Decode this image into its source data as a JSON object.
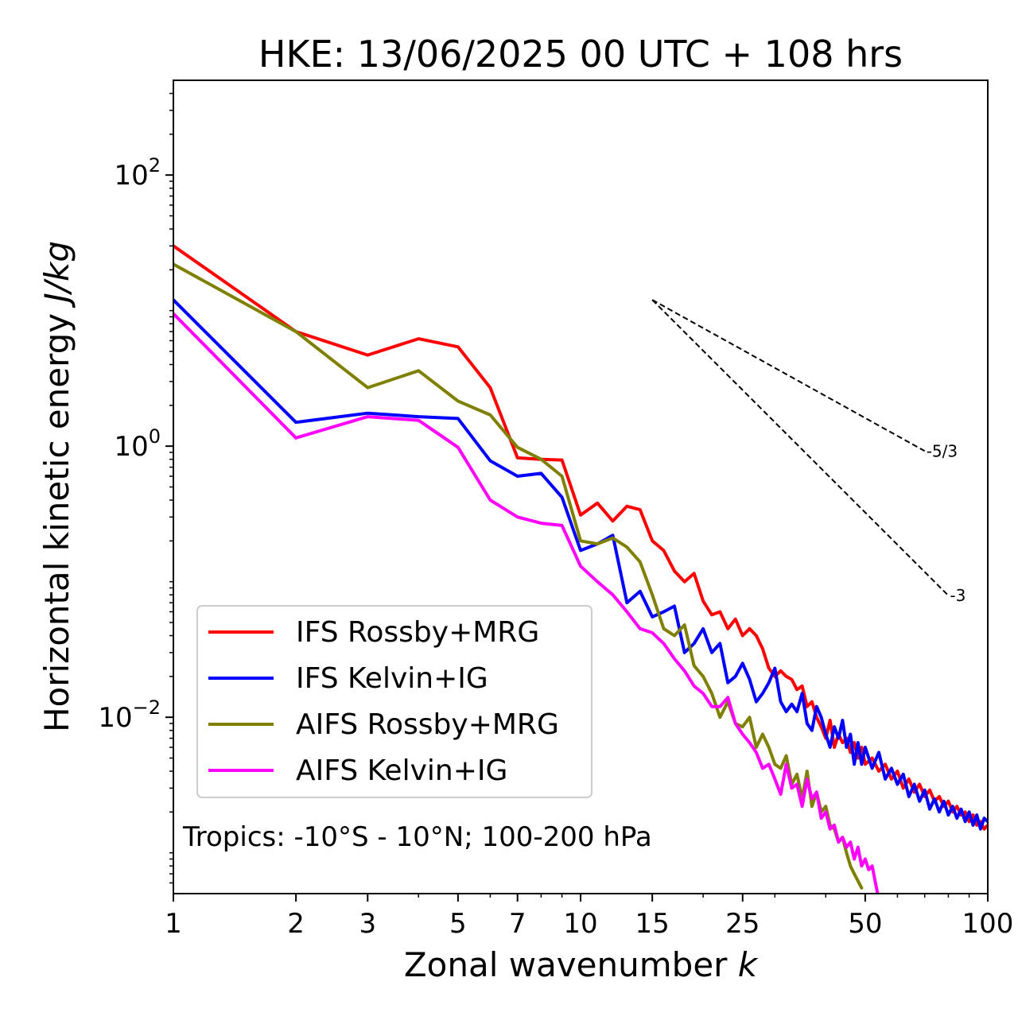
{
  "chart_data": {
    "type": "line",
    "title": "HKE: 13/06/2025 00 UTC + 108 hrs",
    "xlabel": "Zonal wavenumber k",
    "xlabel_parts": {
      "text": "Zonal wavenumber ",
      "var": "k"
    },
    "ylabel": "Horizontal kinetic energy J/kg",
    "ylabel_parts": {
      "text": "Horizontal kinetic energy ",
      "var": "J/kg"
    },
    "xscale": "log",
    "yscale": "log",
    "xlim": [
      1,
      100
    ],
    "ylim": [
      0.0005,
      500
    ],
    "xticks": [
      1,
      2,
      3,
      5,
      7,
      10,
      15,
      25,
      50,
      100
    ],
    "xtick_labels": [
      "1",
      "2",
      "3",
      "5",
      "7",
      "10",
      "15",
      "25",
      "50",
      "100"
    ],
    "yticks": [
      {
        "value": 100,
        "base": "10",
        "exp": "2"
      },
      {
        "value": 1,
        "base": "10",
        "exp": "0"
      },
      {
        "value": 0.01,
        "base": "10",
        "exp": "−2"
      }
    ],
    "grid": false,
    "legend": {
      "placement": "lower-left"
    },
    "annotation": "Tropics: -10°S - 10°N; 100-200 hPa",
    "reference_slopes": [
      {
        "label": "-5/3",
        "slope": -1.6667,
        "x_start": 15,
        "x_end": 70,
        "y_start": 12
      },
      {
        "label": "-3",
        "slope": -3,
        "x_start": 15,
        "x_end": 80,
        "y_start": 12
      }
    ],
    "series": [
      {
        "name": "IFS Rossby+MRG",
        "color": "#ff0000",
        "x": [
          1,
          2,
          3,
          4,
          5,
          6,
          7,
          8,
          9,
          10,
          11,
          12,
          13,
          14,
          15,
          16,
          17,
          18,
          19,
          20,
          21,
          22,
          23,
          24,
          25,
          26,
          27,
          28,
          29,
          30,
          31,
          32,
          33,
          34,
          35,
          36,
          37,
          38,
          39,
          40,
          41,
          42,
          43,
          44,
          45,
          46,
          47,
          48,
          49,
          50,
          52,
          54,
          56,
          58,
          60,
          62,
          64,
          66,
          68,
          70,
          72,
          74,
          76,
          78,
          80,
          82,
          84,
          86,
          88,
          90,
          92,
          94,
          96,
          98,
          100
        ],
        "y": [
          30,
          7,
          4.7,
          6.2,
          5.4,
          2.7,
          0.82,
          0.8,
          0.79,
          0.31,
          0.38,
          0.28,
          0.36,
          0.34,
          0.2,
          0.17,
          0.12,
          0.1,
          0.115,
          0.072,
          0.057,
          0.06,
          0.045,
          0.053,
          0.04,
          0.045,
          0.04,
          0.032,
          0.023,
          0.02,
          0.022,
          0.02,
          0.019,
          0.016,
          0.017,
          0.012,
          0.013,
          0.01,
          0.0085,
          0.007,
          0.0095,
          0.006,
          0.0075,
          0.0065,
          0.007,
          0.0055,
          0.0065,
          0.005,
          0.006,
          0.0045,
          0.005,
          0.004,
          0.0045,
          0.0035,
          0.004,
          0.003,
          0.0035,
          0.0028,
          0.0032,
          0.0026,
          0.0029,
          0.0024,
          0.0026,
          0.0022,
          0.0024,
          0.002,
          0.0022,
          0.0019,
          0.002,
          0.0017,
          0.0019,
          0.0016,
          0.0017,
          0.0015,
          0.0016
        ]
      },
      {
        "name": "IFS Kelvin+IG",
        "color": "#0000ff",
        "x": [
          1,
          2,
          3,
          4,
          5,
          6,
          7,
          8,
          9,
          10,
          11,
          12,
          13,
          14,
          15,
          16,
          17,
          18,
          19,
          20,
          21,
          22,
          23,
          24,
          25,
          26,
          27,
          28,
          29,
          30,
          31,
          32,
          33,
          34,
          35,
          36,
          37,
          38,
          39,
          40,
          41,
          42,
          43,
          44,
          45,
          46,
          47,
          48,
          49,
          50,
          52,
          54,
          56,
          58,
          60,
          62,
          64,
          66,
          68,
          70,
          72,
          74,
          76,
          78,
          80,
          82,
          84,
          86,
          88,
          90,
          92,
          94,
          96,
          98,
          100
        ],
        "y": [
          12,
          1.5,
          1.75,
          1.65,
          1.6,
          0.78,
          0.6,
          0.63,
          0.42,
          0.17,
          0.19,
          0.22,
          0.07,
          0.085,
          0.055,
          0.06,
          0.066,
          0.03,
          0.035,
          0.045,
          0.03,
          0.035,
          0.018,
          0.02,
          0.025,
          0.019,
          0.013,
          0.015,
          0.018,
          0.023,
          0.013,
          0.011,
          0.0125,
          0.011,
          0.015,
          0.009,
          0.008,
          0.012,
          0.01,
          0.0075,
          0.006,
          0.0085,
          0.007,
          0.0095,
          0.006,
          0.0075,
          0.0045,
          0.0065,
          0.0045,
          0.006,
          0.0042,
          0.0055,
          0.0035,
          0.0042,
          0.0032,
          0.0038,
          0.0026,
          0.0032,
          0.0024,
          0.0029,
          0.0021,
          0.0025,
          0.002,
          0.0024,
          0.0019,
          0.0022,
          0.0018,
          0.0021,
          0.0017,
          0.002,
          0.0016,
          0.0019,
          0.0015,
          0.0018,
          0.0017
        ]
      },
      {
        "name": "AIFS Rossby+MRG",
        "color": "#808000",
        "x": [
          1,
          2,
          3,
          4,
          5,
          6,
          7,
          8,
          9,
          10,
          11,
          12,
          13,
          14,
          15,
          16,
          17,
          18,
          19,
          20,
          21,
          22,
          23,
          24,
          25,
          26,
          27,
          28,
          29,
          30,
          31,
          32,
          33,
          34,
          35,
          36,
          37,
          38,
          39,
          40,
          41,
          42,
          43,
          44,
          45,
          46,
          47,
          48,
          49
        ],
        "y": [
          22,
          7,
          2.7,
          3.6,
          2.15,
          1.7,
          0.98,
          0.8,
          0.6,
          0.2,
          0.19,
          0.21,
          0.18,
          0.14,
          0.08,
          0.045,
          0.04,
          0.048,
          0.024,
          0.02,
          0.015,
          0.01,
          0.013,
          0.009,
          0.0085,
          0.01,
          0.006,
          0.0075,
          0.006,
          0.0045,
          0.0042,
          0.0052,
          0.0032,
          0.0038,
          0.0025,
          0.004,
          0.0022,
          0.0028,
          0.002,
          0.0022,
          0.0016,
          0.0015,
          0.0012,
          0.0013,
          0.001,
          0.0008,
          0.0007,
          0.00062,
          0.00055
        ]
      },
      {
        "name": "AIFS Kelvin+IG",
        "color": "#ff00ff",
        "x": [
          1,
          2,
          3,
          4,
          5,
          6,
          7,
          8,
          9,
          10,
          11,
          12,
          13,
          14,
          15,
          16,
          17,
          18,
          19,
          20,
          21,
          22,
          23,
          24,
          25,
          26,
          27,
          28,
          29,
          30,
          31,
          32,
          33,
          34,
          35,
          36,
          37,
          38,
          39,
          40,
          41,
          42,
          43,
          44,
          45,
          46,
          47,
          48,
          49,
          50,
          51,
          52,
          53,
          54
        ],
        "y": [
          9.5,
          1.15,
          1.65,
          1.55,
          0.98,
          0.4,
          0.3,
          0.27,
          0.26,
          0.13,
          0.1,
          0.08,
          0.06,
          0.045,
          0.042,
          0.035,
          0.027,
          0.022,
          0.017,
          0.015,
          0.012,
          0.012,
          0.014,
          0.009,
          0.0075,
          0.0065,
          0.0055,
          0.0042,
          0.0045,
          0.0035,
          0.0027,
          0.0045,
          0.003,
          0.0032,
          0.0022,
          0.0035,
          0.0025,
          0.0028,
          0.0018,
          0.002,
          0.0015,
          0.0016,
          0.0012,
          0.0013,
          0.0011,
          0.0012,
          0.0009,
          0.0011,
          0.0008,
          0.0009,
          0.00075,
          0.0008,
          0.0006,
          0.00045
        ]
      }
    ]
  }
}
